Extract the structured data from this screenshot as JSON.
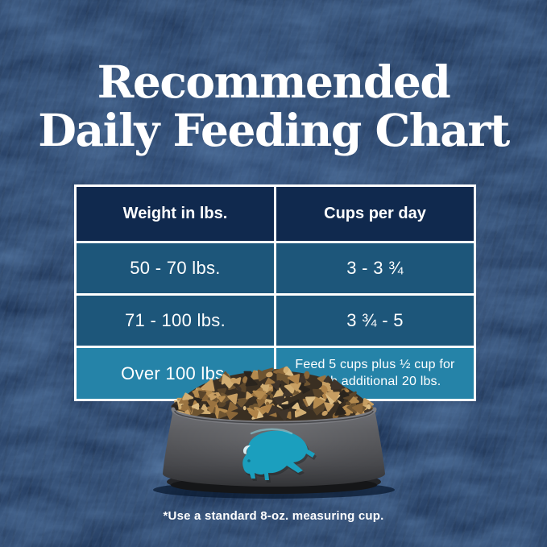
{
  "title": {
    "line1": "Recommended",
    "line2": "Daily Feeding Chart"
  },
  "chart_data": {
    "type": "table",
    "title": "Recommended Daily Feeding Chart",
    "columns": [
      "Weight in lbs.",
      "Cups per day"
    ],
    "rows": [
      [
        "50 - 70 lbs.",
        "3 - 3 ¾"
      ],
      [
        "71 - 100 lbs.",
        "3 ¾ - 5"
      ],
      [
        "Over 100 lbs.",
        "Feed 5 cups plus ½ cup for each additional 20 lbs."
      ]
    ],
    "footnote": "*Use a standard 8-oz. measuring cup."
  },
  "artwork": {
    "bowl": "dark gray pet bowl filled with kibble",
    "logo": "teal buffalo silhouette"
  },
  "colors": {
    "background_navy": "#14294b",
    "table_header_bg": "#10294e",
    "table_row_bg": "#1d567a",
    "table_row_highlight_bg": "#2583a8",
    "table_border": "#ffffff",
    "text_white": "#ffffff",
    "logo_teal": "#1b9fbe",
    "bowl_gray": "#4a4b4f",
    "kibble_tan": "#c79e62"
  }
}
